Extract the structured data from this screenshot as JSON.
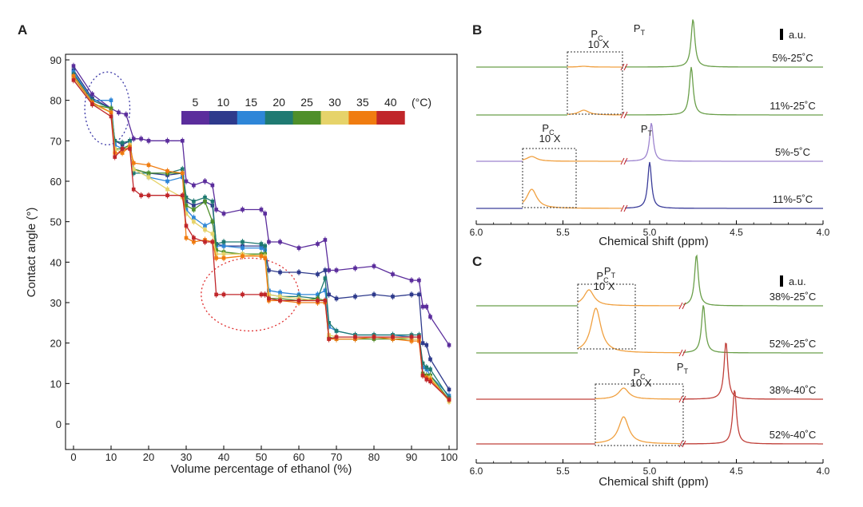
{
  "panels": {
    "A": {
      "label": "A"
    },
    "B": {
      "label": "B"
    },
    "C": {
      "label": "C"
    }
  },
  "chart_data": [
    {
      "panel": "A",
      "type": "line",
      "xlabel": "Volume percentage of ethanol (%)",
      "ylabel": "Contact angle (°)",
      "xlim": [
        0,
        100
      ],
      "ylim": [
        0,
        90
      ],
      "xticks": [
        0,
        10,
        20,
        30,
        40,
        50,
        60,
        70,
        80,
        90,
        100
      ],
      "yticks": [
        0,
        10,
        20,
        30,
        40,
        50,
        60,
        70,
        80,
        90
      ],
      "legend": {
        "labels": [
          "5",
          "10",
          "15",
          "20",
          "25",
          "30",
          "35",
          "40"
        ],
        "unit": "(°C)",
        "colors": [
          "#5b2d9c",
          "#2e3a8c",
          "#2e86d8",
          "#1f7a72",
          "#4f8f2a",
          "#e6d36a",
          "#f07c10",
          "#c0262a"
        ],
        "placement": "top-right"
      },
      "annotations": [
        {
          "shape": "ellipse",
          "style": "dotted",
          "color": "#3d3aa8",
          "center": [
            9,
            78
          ],
          "radius_x": 6,
          "radius_y": 9
        },
        {
          "shape": "ellipse",
          "style": "dotted",
          "color": "#e03030",
          "center": [
            47,
            32
          ],
          "radius_x": 13,
          "radius_y": 9
        }
      ],
      "series": [
        {
          "name": "5",
          "color": "#5b2d9c",
          "x": [
            0,
            5,
            10,
            12,
            14,
            16,
            18,
            20,
            25,
            29,
            30,
            32,
            35,
            37,
            38,
            40,
            45,
            50,
            51,
            52,
            55,
            60,
            65,
            67,
            68,
            70,
            75,
            80,
            85,
            90,
            92,
            93,
            94,
            95,
            100
          ],
          "y": [
            88.5,
            81.5,
            78,
            77,
            76.5,
            70.5,
            70.5,
            70,
            70,
            70,
            60,
            59,
            60,
            59,
            53,
            52,
            53,
            53,
            52,
            45,
            45,
            43.5,
            44.5,
            45.5,
            38,
            38,
            38.5,
            39,
            37,
            35.5,
            35.5,
            29,
            29,
            26.5,
            19.5
          ]
        },
        {
          "name": "10",
          "color": "#2e3a8c",
          "x": [
            0,
            5,
            10,
            11,
            13,
            15,
            16,
            20,
            25,
            29,
            30,
            32,
            35,
            37,
            38,
            40,
            45,
            50,
            51,
            52,
            55,
            60,
            65,
            67,
            68,
            70,
            75,
            80,
            85,
            90,
            92,
            93,
            94,
            95,
            100
          ],
          "y": [
            87.5,
            80.5,
            78,
            70,
            69,
            70,
            63,
            62,
            61.5,
            62,
            55,
            54,
            55,
            54,
            44.5,
            44,
            44,
            44,
            43,
            38,
            37.5,
            37.5,
            37,
            38,
            32,
            31,
            31.5,
            32,
            31.5,
            32,
            32,
            20,
            19.5,
            16,
            8.5
          ]
        },
        {
          "name": "15",
          "color": "#2e86d8",
          "x": [
            0,
            5,
            10,
            11,
            13,
            15,
            16,
            20,
            25,
            29,
            30,
            32,
            35,
            37,
            38,
            40,
            45,
            50,
            51,
            52,
            55,
            60,
            65,
            67,
            68,
            70,
            75,
            80,
            85,
            90,
            92,
            93,
            94,
            95,
            100
          ],
          "y": [
            87,
            80,
            80,
            69,
            68,
            69,
            63,
            61,
            60,
            61,
            53,
            51,
            49,
            50,
            44,
            44,
            43.5,
            43.5,
            43,
            33,
            32.5,
            32,
            32,
            33,
            24,
            23,
            22,
            22,
            22,
            21.5,
            21.5,
            14,
            13.5,
            12,
            7
          ]
        },
        {
          "name": "20",
          "color": "#1f7a72",
          "x": [
            0,
            5,
            10,
            11,
            13,
            15,
            16,
            20,
            25,
            29,
            30,
            32,
            35,
            37,
            38,
            40,
            45,
            50,
            51,
            52,
            55,
            60,
            65,
            67,
            68,
            70,
            75,
            80,
            85,
            90,
            92,
            93,
            94,
            95,
            100
          ],
          "y": [
            86.5,
            80,
            78,
            70,
            69.5,
            70,
            62,
            62,
            62,
            63,
            56,
            55,
            56,
            55,
            44.5,
            45,
            45,
            44.5,
            44,
            32,
            31.5,
            31.5,
            31,
            36,
            25,
            23,
            22,
            22,
            22,
            22,
            22,
            15,
            14,
            13.5,
            6.5
          ]
        },
        {
          "name": "25",
          "color": "#4f8f2a",
          "x": [
            0,
            5,
            10,
            11,
            13,
            15,
            16,
            20,
            25,
            29,
            30,
            32,
            35,
            37,
            38,
            40,
            45,
            50,
            51,
            52,
            55,
            60,
            65,
            67,
            68,
            70,
            75,
            80,
            85,
            90,
            92,
            93,
            94,
            95,
            100
          ],
          "y": [
            86,
            79,
            78,
            68,
            68,
            69,
            63,
            62,
            62,
            62,
            54,
            53,
            55,
            50,
            43,
            42.5,
            42,
            42,
            42,
            31,
            31,
            30.5,
            31,
            30.5,
            21.5,
            21,
            21,
            21,
            21,
            21,
            21,
            12.5,
            12,
            12,
            6
          ]
        },
        {
          "name": "30",
          "color": "#e6d36a",
          "x": [
            0,
            5,
            10,
            11,
            13,
            15,
            16,
            20,
            25,
            29,
            30,
            32,
            35,
            37,
            38,
            40,
            45,
            50,
            51,
            52,
            55,
            60,
            65,
            67,
            68,
            70,
            75,
            80,
            85,
            90,
            92,
            93,
            94,
            95,
            100
          ],
          "y": [
            85.5,
            79,
            77,
            68,
            67,
            69,
            63,
            61,
            58,
            56,
            52,
            50,
            48,
            47,
            42,
            42,
            42,
            41.5,
            41.5,
            32,
            31.5,
            31,
            30.5,
            30.5,
            22,
            21.5,
            21.5,
            21.5,
            21.5,
            21,
            21,
            12,
            11.5,
            11.5,
            5.5
          ]
        },
        {
          "name": "35",
          "color": "#f07c10",
          "x": [
            0,
            5,
            10,
            11,
            13,
            15,
            16,
            20,
            25,
            29,
            30,
            32,
            35,
            37,
            38,
            40,
            45,
            50,
            51,
            52,
            55,
            60,
            65,
            67,
            68,
            70,
            75,
            80,
            85,
            90,
            92,
            93,
            94,
            95,
            100
          ],
          "y": [
            86,
            79.5,
            77,
            67,
            67,
            68.5,
            64.5,
            64,
            62.5,
            62,
            46,
            45,
            45.5,
            45,
            41,
            41,
            41.5,
            41.5,
            41,
            30.5,
            30.5,
            30,
            30,
            30,
            21,
            21,
            21,
            21.5,
            21,
            20.5,
            20.5,
            12,
            11.5,
            11,
            6
          ]
        },
        {
          "name": "40",
          "color": "#c0262a",
          "x": [
            0,
            5,
            10,
            11,
            13,
            15,
            16,
            18,
            20,
            25,
            29,
            30,
            32,
            35,
            37,
            38,
            40,
            45,
            50,
            51,
            52,
            55,
            60,
            65,
            67,
            68,
            70,
            75,
            80,
            85,
            90,
            92,
            93,
            94,
            95,
            100
          ],
          "y": [
            85,
            79,
            76,
            66,
            68,
            68,
            58,
            56.5,
            56.5,
            56.5,
            56.5,
            49,
            46,
            45,
            45,
            32,
            32,
            32,
            32,
            32,
            31,
            30.5,
            30.5,
            30.5,
            30.5,
            21,
            21.5,
            21.5,
            21.5,
            21.5,
            21.5,
            21.5,
            12,
            11,
            10.5,
            6
          ]
        }
      ]
    },
    {
      "panel": "B",
      "type": "line",
      "xlabel": "Chemical shift (ppm)",
      "xlim": [
        6.0,
        4.0
      ],
      "xticks": [
        "6.0",
        "5.5",
        "5.0",
        "4.5",
        "4.0"
      ],
      "scale_bar_label": "a.u.",
      "spectra": [
        {
          "label": "5%-25˚C",
          "color": "#6a9f4a",
          "peak_pos": 4.75,
          "peak_height": 60,
          "pc_pos": 5.38,
          "pc_height": 1
        },
        {
          "label": "11%-25˚C",
          "color": "#6a9f4a",
          "peak_pos": 4.76,
          "peak_height": 60,
          "pc_pos": 5.38,
          "pc_height": 6
        },
        {
          "label": "5%-5˚C",
          "color": "#9d84cf",
          "peak_pos": 4.99,
          "peak_height": 48,
          "pc_pos": 5.68,
          "pc_height": 6
        },
        {
          "label": "11%-5˚C",
          "color": "#3b3d9a",
          "peak_pos": 5.0,
          "peak_height": 58,
          "pc_pos": 5.68,
          "pc_height": 24
        }
      ],
      "annotations": [
        {
          "text": "P",
          "sub": "T",
          "near": "5%-25˚C"
        },
        {
          "text": "P",
          "sub": "C",
          "mult": "10 X",
          "near": "5%-25˚C"
        },
        {
          "text": "P",
          "sub": "T",
          "near": "5%-5˚C"
        },
        {
          "text": "P",
          "sub": "C",
          "mult": "10 X",
          "near": "5%-5˚C"
        }
      ]
    },
    {
      "panel": "C",
      "type": "line",
      "xlabel": "Chemical shift (ppm)",
      "xlim": [
        6.0,
        4.0
      ],
      "xticks": [
        "6.0",
        "5.5",
        "5.0",
        "4.5",
        "4.0"
      ],
      "scale_bar_label": "a.u.",
      "spectra": [
        {
          "label": "38%-25˚C",
          "color": "#6a9f4a",
          "peak_pos": 4.73,
          "peak_height": 64,
          "pc_pos": 5.35,
          "pc_height": 20
        },
        {
          "label": "52%-25˚C",
          "color": "#6a9f4a",
          "peak_pos": 4.69,
          "peak_height": 60,
          "pc_pos": 5.31,
          "pc_height": 56
        },
        {
          "label": "38%-40˚C",
          "color": "#c0403a",
          "peak_pos": 4.56,
          "peak_height": 72,
          "pc_pos": 5.15,
          "pc_height": 14
        },
        {
          "label": "52%-40˚C",
          "color": "#c0403a",
          "peak_pos": 4.51,
          "peak_height": 68,
          "pc_pos": 5.15,
          "pc_height": 34
        }
      ],
      "annotations": [
        {
          "text": "P",
          "sub": "T",
          "near": "38%-25˚C"
        },
        {
          "text": "P",
          "sub": "C",
          "mult": "10 X",
          "near": "38%-25˚C"
        },
        {
          "text": "P",
          "sub": "T",
          "near": "38%-40˚C"
        },
        {
          "text": "P",
          "sub": "C",
          "mult": "10 X",
          "near": "38%-40˚C"
        }
      ]
    }
  ]
}
